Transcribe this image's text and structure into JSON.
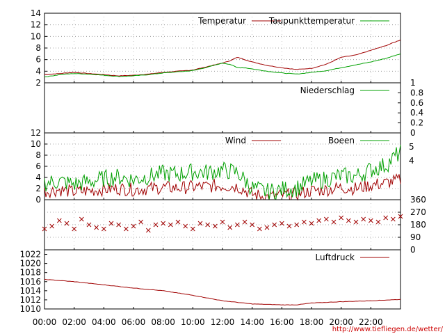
{
  "credit": "http://www.tiefliegen.de/wetter/",
  "time_axis": {
    "labels": [
      "00:00",
      "02:00",
      "04:00",
      "06:00",
      "08:00",
      "10:00",
      "12:00",
      "14:00",
      "16:00",
      "18:00",
      "20:00",
      "22:00"
    ],
    "hours": [
      0,
      2,
      4,
      6,
      8,
      10,
      12,
      14,
      16,
      18,
      20,
      22
    ],
    "range": [
      0,
      24
    ]
  },
  "chart_data": [
    {
      "type": "line",
      "panel": "temperature",
      "ylim": [
        2,
        14
      ],
      "yticks": [
        "2",
        "4",
        "6",
        "8",
        "10",
        "12",
        "14"
      ],
      "grid": true,
      "legend": "top-right",
      "x": [
        0,
        1,
        2,
        3,
        4,
        5,
        6,
        7,
        8,
        9,
        10,
        11,
        12,
        12.5,
        13,
        13.5,
        14,
        15,
        16,
        17,
        18,
        19,
        20,
        21,
        22,
        23,
        24
      ],
      "series": [
        {
          "name": "Temperatur",
          "color": "#a00000",
          "values": [
            3.4,
            3.6,
            3.8,
            3.6,
            3.4,
            3.2,
            3.3,
            3.5,
            3.8,
            4.0,
            4.2,
            4.8,
            5.4,
            5.8,
            6.4,
            6.0,
            5.6,
            5.0,
            4.6,
            4.3,
            4.5,
            5.2,
            6.4,
            6.8,
            7.6,
            8.4,
            9.4
          ]
        },
        {
          "name": "Taupunkttemperatur",
          "color": "#00a000",
          "values": [
            3.0,
            3.4,
            3.6,
            3.5,
            3.3,
            3.1,
            3.2,
            3.4,
            3.7,
            3.9,
            4.1,
            4.7,
            5.4,
            5.2,
            4.6,
            4.6,
            4.4,
            4.0,
            3.7,
            3.5,
            3.8,
            4.1,
            4.6,
            5.1,
            5.6,
            6.2,
            7.0
          ]
        }
      ]
    },
    {
      "type": "line",
      "panel": "precipitation",
      "ylim": [
        0,
        1
      ],
      "yticks": [
        "0",
        "0.2",
        "0.4",
        "0.6",
        "0.8",
        "1"
      ],
      "grid": false,
      "legend": "top-right",
      "series": [
        {
          "name": "Niederschlag",
          "color": "#00a000",
          "values": [
            0,
            0,
            0,
            0,
            0,
            0,
            0,
            0,
            0,
            0,
            0,
            0,
            0
          ]
        }
      ]
    },
    {
      "type": "line",
      "panel": "wind",
      "ylim": [
        0,
        12
      ],
      "yticks": [
        "0",
        "2",
        "4",
        "6",
        "8",
        "10",
        "12"
      ],
      "right_ticks": [
        "4",
        "5"
      ],
      "grid": true,
      "legend": "top-right",
      "x": [
        0,
        1,
        2,
        3,
        4,
        5,
        6,
        7,
        8,
        9,
        10,
        11,
        12,
        13,
        14,
        15,
        16,
        17,
        18,
        19,
        20,
        21,
        22,
        23,
        24
      ],
      "series": [
        {
          "name": "Wind",
          "color": "#a00000",
          "values": [
            1.5,
            1.8,
            1.4,
            1.6,
            1.9,
            2.0,
            1.8,
            2.0,
            2.2,
            2.1,
            2.3,
            2.4,
            2.5,
            2.4,
            1.0,
            0.5,
            0.8,
            1.0,
            1.6,
            1.8,
            2.2,
            2.0,
            2.6,
            3.0,
            3.6
          ]
        },
        {
          "name": "Boeen",
          "color": "#00a000",
          "values": [
            3.0,
            3.3,
            2.8,
            3.2,
            3.8,
            4.1,
            3.6,
            4.2,
            4.7,
            4.6,
            5.0,
            4.9,
            5.3,
            4.9,
            2.1,
            1.4,
            1.8,
            2.1,
            3.3,
            3.7,
            4.3,
            4.2,
            5.4,
            6.2,
            8.6
          ]
        }
      ]
    },
    {
      "type": "scatter",
      "panel": "wind_direction",
      "ylim": [
        0,
        360
      ],
      "yticks": [
        "0",
        "90",
        "180",
        "270",
        "360"
      ],
      "grid": true,
      "color": "#a00000",
      "x": [
        0,
        0.5,
        1,
        1.5,
        2,
        2.5,
        3,
        3.5,
        4,
        4.5,
        5,
        5.5,
        6,
        6.5,
        7,
        7.5,
        8,
        8.5,
        9,
        9.5,
        10,
        10.5,
        11,
        11.5,
        12,
        12.5,
        13,
        13.5,
        14,
        14.5,
        15,
        15.5,
        16,
        16.5,
        17,
        17.5,
        18,
        18.5,
        19,
        19.5,
        20,
        20.5,
        21,
        21.5,
        22,
        22.5,
        23,
        23.5,
        24
      ],
      "values": [
        150,
        170,
        210,
        190,
        150,
        220,
        180,
        160,
        150,
        190,
        180,
        150,
        170,
        200,
        140,
        180,
        190,
        180,
        200,
        170,
        150,
        190,
        180,
        170,
        200,
        160,
        180,
        200,
        180,
        150,
        160,
        180,
        190,
        170,
        180,
        200,
        190,
        210,
        220,
        200,
        230,
        210,
        200,
        220,
        210,
        200,
        230,
        220,
        240
      ]
    },
    {
      "type": "line",
      "panel": "pressure",
      "ylim": [
        1010,
        1023
      ],
      "yticks": [
        "1010",
        "1012",
        "1014",
        "1016",
        "1018",
        "1020",
        "1022"
      ],
      "grid": false,
      "legend": "top-right",
      "x": [
        0,
        2,
        4,
        6,
        8,
        10,
        12,
        14,
        16,
        17,
        18,
        20,
        22,
        24
      ],
      "series": [
        {
          "name": "Luftdruck",
          "color": "#a00000",
          "values": [
            1016.5,
            1016.0,
            1015.3,
            1014.6,
            1014.0,
            1013.0,
            1011.8,
            1011.1,
            1010.9,
            1010.9,
            1011.3,
            1011.6,
            1011.8,
            1012.1
          ]
        }
      ]
    }
  ]
}
